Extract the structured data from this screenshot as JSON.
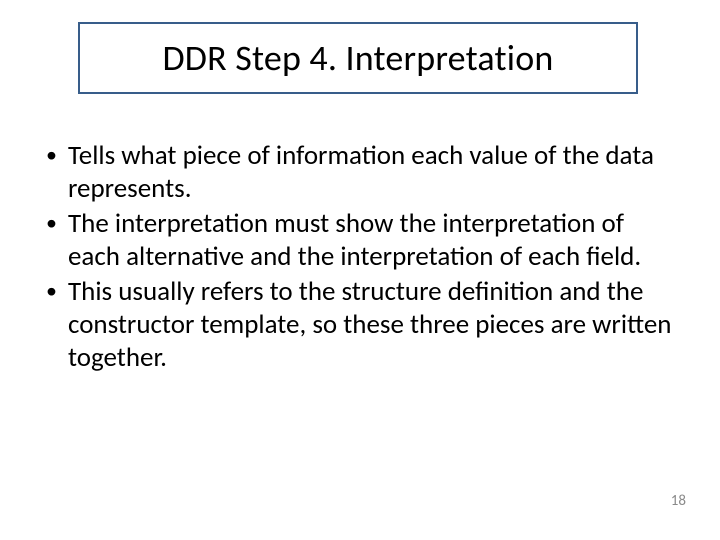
{
  "slide": {
    "title": "DDR Step 4. Interpretation",
    "title_border_color": "#385d8a",
    "title_fontsize": 36,
    "title_color": "#000000",
    "bullets": [
      "Tells what piece of information each value of the data represents.",
      "The interpretation must show the interpretation of each alternative and the interpretation of each field.",
      "This usually refers to the structure definition and the constructor template, so these three pieces are written together."
    ],
    "bullet_fontsize": 27,
    "bullet_color": "#000000",
    "page_number": "18",
    "page_number_color": "#8a8a8a",
    "background_color": "#ffffff"
  }
}
